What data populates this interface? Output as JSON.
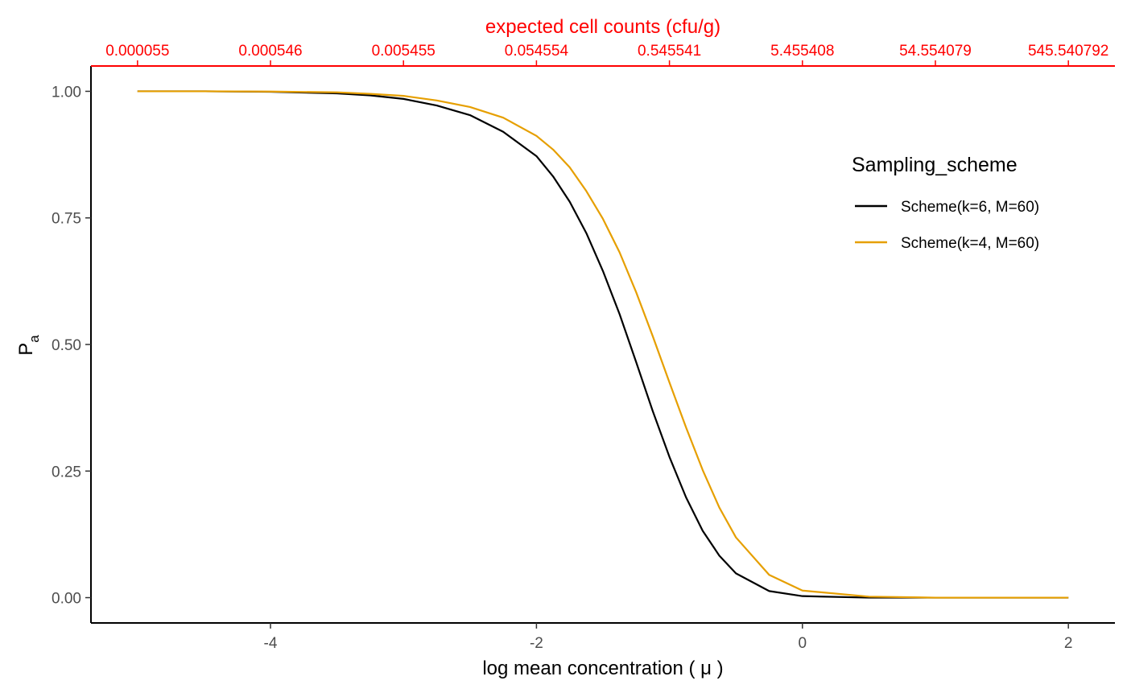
{
  "chart_data": {
    "type": "line",
    "xlabel": "log mean concentration  ( μ )",
    "ylabel_main": "P",
    "ylabel_sub": "a",
    "secondary_x_label": "expected cell counts (cfu/g)",
    "x_ticks": [
      -4,
      -2,
      0,
      2
    ],
    "x_tick_labels": [
      "-4",
      "-2",
      "0",
      "2"
    ],
    "y_ticks": [
      0,
      0.25,
      0.5,
      0.75,
      1.0
    ],
    "y_tick_labels": [
      "0.00",
      "0.25",
      "0.50",
      "0.75",
      "1.00"
    ],
    "secondary_x_ticks": [
      -5,
      -4,
      -3,
      -2,
      -1,
      0,
      1,
      2
    ],
    "secondary_x_tick_labels": [
      "0.000055",
      "0.000546",
      "0.005455",
      "0.054554",
      "0.545541",
      "5.455408",
      "54.554079",
      "545.540792"
    ],
    "xlim": [
      -5.35,
      2.35
    ],
    "ylim": [
      -0.05,
      1.05
    ],
    "legend_title": "Sampling_scheme",
    "legend_position": "right",
    "series": [
      {
        "name": "Scheme(k=6, M=60)",
        "color": "#000000",
        "x": [
          -5.0,
          -4.5,
          -4.0,
          -3.5,
          -3.25,
          -3.0,
          -2.75,
          -2.5,
          -2.25,
          -2.0,
          -1.875,
          -1.75,
          -1.625,
          -1.5,
          -1.375,
          -1.25,
          -1.125,
          -1.0,
          -0.875,
          -0.75,
          -0.625,
          -0.5,
          -0.25,
          0.0,
          0.5,
          1.0,
          2.0
        ],
        "y": [
          1.0,
          1.0,
          0.999,
          0.996,
          0.992,
          0.985,
          0.972,
          0.953,
          0.92,
          0.872,
          0.832,
          0.782,
          0.72,
          0.645,
          0.56,
          0.465,
          0.368,
          0.278,
          0.198,
          0.132,
          0.083,
          0.048,
          0.013,
          0.003,
          0.0,
          0.0,
          0.0
        ]
      },
      {
        "name": "Scheme(k=4, M=60)",
        "color": "#E69F00",
        "x": [
          -5.0,
          -4.5,
          -4.0,
          -3.5,
          -3.25,
          -3.0,
          -2.75,
          -2.5,
          -2.25,
          -2.0,
          -1.875,
          -1.75,
          -1.625,
          -1.5,
          -1.375,
          -1.25,
          -1.125,
          -1.0,
          -0.875,
          -0.75,
          -0.625,
          -0.5,
          -0.25,
          0.0,
          0.5,
          1.0,
          2.0
        ],
        "y": [
          1.0,
          1.0,
          0.9995,
          0.998,
          0.995,
          0.991,
          0.982,
          0.969,
          0.948,
          0.912,
          0.885,
          0.85,
          0.803,
          0.748,
          0.682,
          0.603,
          0.516,
          0.425,
          0.336,
          0.252,
          0.178,
          0.119,
          0.045,
          0.014,
          0.002,
          0.0,
          0.0
        ]
      }
    ]
  },
  "colors": {
    "secondary_axis": "#FF0000",
    "axis_line": "#000000",
    "tick_text": "#4D4D4D"
  }
}
